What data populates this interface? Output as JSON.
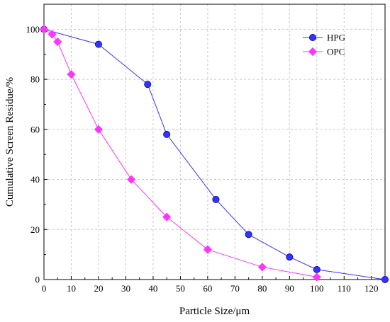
{
  "chart_data": {
    "type": "line",
    "title": "",
    "xlabel": "Particle Size/μm",
    "ylabel": "Cumulative Screen Residue/%",
    "xlim": [
      0,
      125
    ],
    "ylim": [
      0,
      110
    ],
    "x_ticks": [
      "0",
      "10",
      "20",
      "30",
      "40",
      "50",
      "60",
      "70",
      "80",
      "90",
      "100",
      "110",
      "120"
    ],
    "x_tick_values": [
      0,
      10,
      20,
      30,
      40,
      50,
      60,
      70,
      80,
      90,
      100,
      110,
      120
    ],
    "y_ticks": [
      "0",
      "20",
      "40",
      "60",
      "80",
      "100"
    ],
    "y_tick_values": [
      0,
      20,
      40,
      60,
      80,
      100
    ],
    "grid": true,
    "legend_position": "top-right",
    "series": [
      {
        "name": "HPG",
        "color": "#3333ff",
        "marker": "circle",
        "x": [
          0,
          20,
          38,
          45,
          63,
          75,
          90,
          100,
          125
        ],
        "y": [
          100,
          94,
          78,
          58,
          32,
          18,
          9,
          4,
          0
        ]
      },
      {
        "name": "OPC",
        "color": "#ff33ff",
        "marker": "diamond",
        "x": [
          0,
          3,
          5,
          10,
          20,
          32,
          45,
          60,
          80,
          100
        ],
        "y": [
          100,
          98,
          95,
          82,
          60,
          40,
          25,
          12,
          5,
          1
        ]
      }
    ]
  }
}
